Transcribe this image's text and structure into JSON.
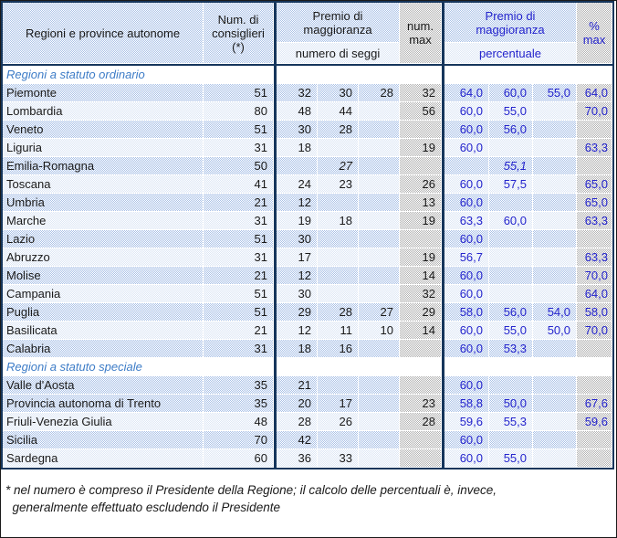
{
  "header": {
    "regioni": "Regioni e province autonome",
    "consiglieri": "Num. di\nconsiglieri\n(*)",
    "premio_seggi": "Premio di\nmaggioranza",
    "premio_seggi_sub": "numero di seggi",
    "num_max": "num.\nmax",
    "premio_perc": "Premio di\nmaggioranza",
    "premio_perc_sub": "percentuale",
    "perc_max": "%\nmax"
  },
  "colors": {
    "row_blue_dither": "#a9c1e7",
    "row_light_dither": "#dce6f5",
    "gray_col_dither": "#b2b2b2",
    "divider_navy": "#16365c",
    "value_blue_text": "#2424cd",
    "section_blue_text": "#3d7cc7"
  },
  "sections": [
    {
      "label": "Regioni a statuto ordinario",
      "rows": [
        {
          "name": "Piemonte",
          "consiglieri": "51",
          "seggi": [
            "32",
            "30",
            "28"
          ],
          "num_max": "32",
          "perc": [
            "64,0",
            "60,0",
            "55,0"
          ],
          "perc_max": "64,0",
          "shade": "b",
          "italic": false
        },
        {
          "name": "Lombardia",
          "consiglieri": "80",
          "seggi": [
            "48",
            "44",
            ""
          ],
          "num_max": "56",
          "perc": [
            "60,0",
            "55,0",
            ""
          ],
          "perc_max": "70,0",
          "shade": "l",
          "italic": false
        },
        {
          "name": "Veneto",
          "consiglieri": "51",
          "seggi": [
            "30",
            "28",
            ""
          ],
          "num_max": "",
          "perc": [
            "60,0",
            "56,0",
            ""
          ],
          "perc_max": "",
          "shade": "b",
          "italic": false
        },
        {
          "name": "Liguria",
          "consiglieri": "31",
          "seggi": [
            "18",
            "",
            ""
          ],
          "num_max": "19",
          "perc": [
            "60,0",
            "",
            ""
          ],
          "perc_max": "63,3",
          "shade": "l",
          "italic": false
        },
        {
          "name": "Emilia-Romagna",
          "consiglieri": "50",
          "seggi": [
            "",
            "27",
            ""
          ],
          "num_max": "",
          "perc": [
            "",
            "55,1",
            ""
          ],
          "perc_max": "",
          "shade": "b",
          "italic": true
        },
        {
          "name": "Toscana",
          "consiglieri": "41",
          "seggi": [
            "24",
            "23",
            ""
          ],
          "num_max": "26",
          "perc": [
            "60,0",
            "57,5",
            ""
          ],
          "perc_max": "65,0",
          "shade": "l",
          "italic": false
        },
        {
          "name": "Umbria",
          "consiglieri": "21",
          "seggi": [
            "12",
            "",
            ""
          ],
          "num_max": "13",
          "perc": [
            "60,0",
            "",
            ""
          ],
          "perc_max": "65,0",
          "shade": "b",
          "italic": false
        },
        {
          "name": "Marche",
          "consiglieri": "31",
          "seggi": [
            "19",
            "18",
            ""
          ],
          "num_max": "19",
          "perc": [
            "63,3",
            "60,0",
            ""
          ],
          "perc_max": "63,3",
          "shade": "l",
          "italic": false
        },
        {
          "name": "Lazio",
          "consiglieri": "51",
          "seggi": [
            "30",
            "",
            ""
          ],
          "num_max": "",
          "perc": [
            "60,0",
            "",
            ""
          ],
          "perc_max": "",
          "shade": "b",
          "italic": false
        },
        {
          "name": "Abruzzo",
          "consiglieri": "31",
          "seggi": [
            "17",
            "",
            ""
          ],
          "num_max": "19",
          "perc": [
            "56,7",
            "",
            ""
          ],
          "perc_max": "63,3",
          "shade": "l",
          "italic": false
        },
        {
          "name": "Molise",
          "consiglieri": "21",
          "seggi": [
            "12",
            "",
            ""
          ],
          "num_max": "14",
          "perc": [
            "60,0",
            "",
            ""
          ],
          "perc_max": "70,0",
          "shade": "b",
          "italic": false
        },
        {
          "name": "Campania",
          "consiglieri": "51",
          "seggi": [
            "30",
            "",
            ""
          ],
          "num_max": "32",
          "perc": [
            "60,0",
            "",
            ""
          ],
          "perc_max": "64,0",
          "shade": "l",
          "italic": false
        },
        {
          "name": "Puglia",
          "consiglieri": "51",
          "seggi": [
            "29",
            "28",
            "27"
          ],
          "num_max": "29",
          "perc": [
            "58,0",
            "56,0",
            "54,0"
          ],
          "perc_max": "58,0",
          "shade": "b",
          "italic": false
        },
        {
          "name": "Basilicata",
          "consiglieri": "21",
          "seggi": [
            "12",
            "11",
            "10"
          ],
          "num_max": "14",
          "perc": [
            "60,0",
            "55,0",
            "50,0"
          ],
          "perc_max": "70,0",
          "shade": "l",
          "italic": false
        },
        {
          "name": "Calabria",
          "consiglieri": "31",
          "seggi": [
            "18",
            "16",
            ""
          ],
          "num_max": "",
          "perc": [
            "60,0",
            "53,3",
            ""
          ],
          "perc_max": "",
          "shade": "b",
          "italic": false
        }
      ]
    },
    {
      "label": "Regioni a statuto speciale",
      "rows": [
        {
          "name": "Valle d'Aosta",
          "consiglieri": "35",
          "seggi": [
            "21",
            "",
            ""
          ],
          "num_max": "",
          "perc": [
            "60,0",
            "",
            ""
          ],
          "perc_max": "",
          "shade": "b",
          "italic": false
        },
        {
          "name": "Provincia autonoma di Trento",
          "consiglieri": "35",
          "seggi": [
            "20",
            "17",
            ""
          ],
          "num_max": "23",
          "perc": [
            "58,8",
            "50,0",
            ""
          ],
          "perc_max": "67,6",
          "shade": "b",
          "italic": false
        },
        {
          "name": "Friuli-Venezia Giulia",
          "consiglieri": "48",
          "seggi": [
            "28",
            "26",
            ""
          ],
          "num_max": "28",
          "perc": [
            "59,6",
            "55,3",
            ""
          ],
          "perc_max": "59,6",
          "shade": "l",
          "italic": false
        },
        {
          "name": "Sicilia",
          "consiglieri": "70",
          "seggi": [
            "42",
            "",
            ""
          ],
          "num_max": "",
          "perc": [
            "60,0",
            "",
            ""
          ],
          "perc_max": "",
          "shade": "b",
          "italic": false
        },
        {
          "name": "Sardegna",
          "consiglieri": "60",
          "seggi": [
            "36",
            "33",
            ""
          ],
          "num_max": "",
          "perc": [
            "60,0",
            "55,0",
            ""
          ],
          "perc_max": "",
          "shade": "l",
          "italic": false
        }
      ]
    }
  ],
  "footnote": "* nel numero è compreso il Presidente della Regione; il calcolo delle percentuali è, invece,\n  generalmente effettuato escludendo il Presidente"
}
